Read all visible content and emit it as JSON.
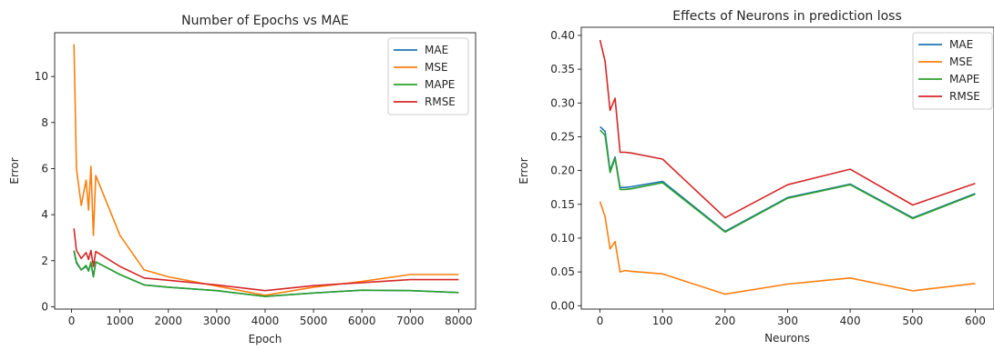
{
  "chart_data": [
    {
      "type": "line",
      "title": "Number of Epochs vs MAE",
      "xlabel": "Epoch",
      "ylabel": "Error",
      "xlim": [
        -350,
        8350
      ],
      "ylim": [
        -0.1,
        11.9
      ],
      "xticks": [
        0,
        1000,
        2000,
        3000,
        4000,
        5000,
        6000,
        7000,
        8000
      ],
      "yticks": [
        0,
        2,
        4,
        6,
        8,
        10
      ],
      "legend": "top-right",
      "series": [
        {
          "name": "MAE",
          "color": "#1f77b4",
          "x": [
            50,
            100,
            200,
            300,
            350,
            400,
            450,
            500,
            1000,
            1500,
            2000,
            3000,
            4000,
            5000,
            6000,
            7000,
            8000
          ],
          "y": [
            2.4,
            1.9,
            1.6,
            1.75,
            1.55,
            1.9,
            1.3,
            1.95,
            1.4,
            0.95,
            0.85,
            0.7,
            0.45,
            0.6,
            0.72,
            0.7,
            0.62
          ]
        },
        {
          "name": "MSE",
          "color": "#ff7f0e",
          "x": [
            50,
            100,
            200,
            300,
            350,
            400,
            450,
            500,
            1000,
            1500,
            2000,
            3000,
            4000,
            5000,
            6000,
            7000,
            8000
          ],
          "y": [
            11.4,
            6.0,
            4.4,
            5.5,
            4.2,
            6.1,
            3.1,
            5.7,
            3.1,
            1.6,
            1.3,
            0.9,
            0.5,
            0.85,
            1.1,
            1.4,
            1.4
          ]
        },
        {
          "name": "MAPE",
          "color": "#2ca02c",
          "x": [
            50,
            100,
            200,
            300,
            350,
            400,
            450,
            500,
            1000,
            1500,
            2000,
            3000,
            4000,
            5000,
            6000,
            7000,
            8000
          ],
          "y": [
            2.45,
            1.95,
            1.6,
            1.8,
            1.55,
            1.95,
            1.3,
            1.95,
            1.4,
            0.95,
            0.85,
            0.7,
            0.45,
            0.6,
            0.72,
            0.7,
            0.62
          ]
        },
        {
          "name": "RMSE",
          "color": "#d62728",
          "x": [
            50,
            100,
            200,
            300,
            350,
            400,
            450,
            500,
            1000,
            1500,
            2000,
            3000,
            4000,
            5000,
            6000,
            7000,
            8000
          ],
          "y": [
            3.4,
            2.45,
            2.1,
            2.35,
            2.05,
            2.45,
            1.75,
            2.4,
            1.75,
            1.25,
            1.15,
            0.95,
            0.7,
            0.92,
            1.05,
            1.18,
            1.18
          ]
        }
      ]
    },
    {
      "type": "line",
      "title": "Effects of Neurons in prediction loss",
      "xlabel": "Neurons",
      "ylabel": "Error",
      "xlim": [
        -30,
        630
      ],
      "ylim": [
        -0.005,
        0.412
      ],
      "xticks": [
        0,
        100,
        200,
        300,
        400,
        500,
        600
      ],
      "yticks": [
        0.0,
        0.05,
        0.1,
        0.15,
        0.2,
        0.25,
        0.3,
        0.35,
        0.4
      ],
      "ytick_labels": [
        "0.00",
        "0.05",
        "0.10",
        "0.15",
        "0.20",
        "0.25",
        "0.30",
        "0.35",
        "0.40"
      ],
      "legend": "top-right",
      "series": [
        {
          "name": "MAE",
          "color": "#1f77b4",
          "x": [
            0,
            8,
            16,
            24,
            32,
            40,
            50,
            100,
            200,
            300,
            400,
            500,
            600
          ],
          "y": [
            0.265,
            0.258,
            0.2,
            0.22,
            0.175,
            0.175,
            0.176,
            0.184,
            0.11,
            0.16,
            0.18,
            0.13,
            0.166
          ]
        },
        {
          "name": "MSE",
          "color": "#ff7f0e",
          "x": [
            0,
            8,
            16,
            24,
            32,
            40,
            50,
            100,
            200,
            300,
            400,
            500,
            600
          ],
          "y": [
            0.154,
            0.132,
            0.084,
            0.095,
            0.05,
            0.052,
            0.051,
            0.047,
            0.017,
            0.032,
            0.041,
            0.022,
            0.033
          ]
        },
        {
          "name": "MAPE",
          "color": "#2ca02c",
          "x": [
            0,
            8,
            16,
            24,
            32,
            40,
            50,
            100,
            200,
            300,
            400,
            500,
            600
          ],
          "y": [
            0.26,
            0.252,
            0.197,
            0.218,
            0.172,
            0.172,
            0.173,
            0.182,
            0.109,
            0.159,
            0.179,
            0.129,
            0.165
          ]
        },
        {
          "name": "RMSE",
          "color": "#d62728",
          "x": [
            0,
            8,
            16,
            24,
            32,
            40,
            50,
            100,
            200,
            300,
            400,
            500,
            600
          ],
          "y": [
            0.393,
            0.362,
            0.289,
            0.307,
            0.227,
            0.227,
            0.226,
            0.217,
            0.13,
            0.179,
            0.202,
            0.149,
            0.181
          ]
        }
      ]
    }
  ]
}
